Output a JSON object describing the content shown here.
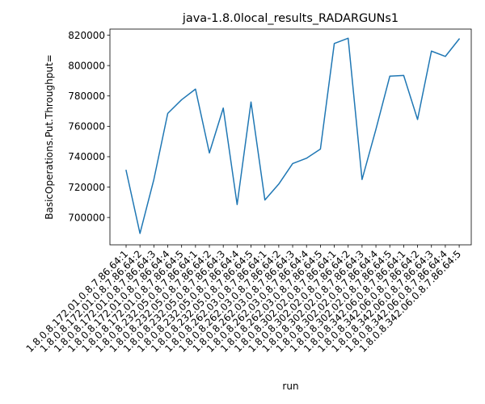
{
  "chart_data": {
    "type": "line",
    "title": "java-1.8.0local_results_RADARGUNs1",
    "xlabel": "run",
    "ylabel": "BasicOperations.Put.Throughput=",
    "ylim": [
      682000,
      824000
    ],
    "yticks": [
      700000,
      720000,
      740000,
      760000,
      780000,
      800000,
      820000
    ],
    "grid": false,
    "categories": [
      "1.8.0.8.172.01.0.8.7.86.64:1",
      "1.8.0.8.172.01.0.8.7.86.64:2",
      "1.8.0.8.172.01.0.8.7.86.64:3",
      "1.8.0.8.172.01.0.8.7.86.64:4",
      "1.8.0.8.172.01.0.8.7.86.64:5",
      "1.8.0.8.232.05.0.8.7.86.64:1",
      "1.8.0.8.232.05.0.8.7.86.64:2",
      "1.8.0.8.232.05.0.8.7.86.64:3",
      "1.8.0.8.232.05.0.8.7.86.64:4",
      "1.8.0.8.232.05.0.8.7.86.64:5",
      "1.8.0.8.262.03.0.8.7.86.64:1",
      "1.8.0.8.262.03.0.8.7.86.64:2",
      "1.8.0.8.262.03.0.8.7.86.64:3",
      "1.8.0.8.262.03.0.8.7.86.64:4",
      "1.8.0.8.262.03.0.8.7.86.64:5",
      "1.8.0.8.302.02.0.8.7.86.64:1",
      "1.8.0.8.302.02.0.8.7.86.64:2",
      "1.8.0.8.302.02.0.8.7.86.64:3",
      "1.8.0.8.302.02.0.8.7.86.64:4",
      "1.8.0.8.302.02.0.8.7.86.64:5",
      "1.8.0.8.342.06.0.8.7.86.64:1",
      "1.8.0.8.342.06.0.8.7.86.64:2",
      "1.8.0.8.342.06.0.8.7.86.64:3",
      "1.8.0.8.342.06.0.8.7.86.64:4",
      "1.8.0.8.342.06.0.8.7.86.64:5"
    ],
    "series": [
      {
        "color": "#1f77b4",
        "values": [
          731000,
          689500,
          725000,
          768500,
          777500,
          784500,
          742500,
          772000,
          708500,
          776000,
          711500,
          722000,
          735500,
          739000,
          745000,
          814500,
          818000,
          725000,
          758000,
          793000,
          793500,
          764500,
          809500,
          806000,
          817500
        ]
      }
    ]
  }
}
